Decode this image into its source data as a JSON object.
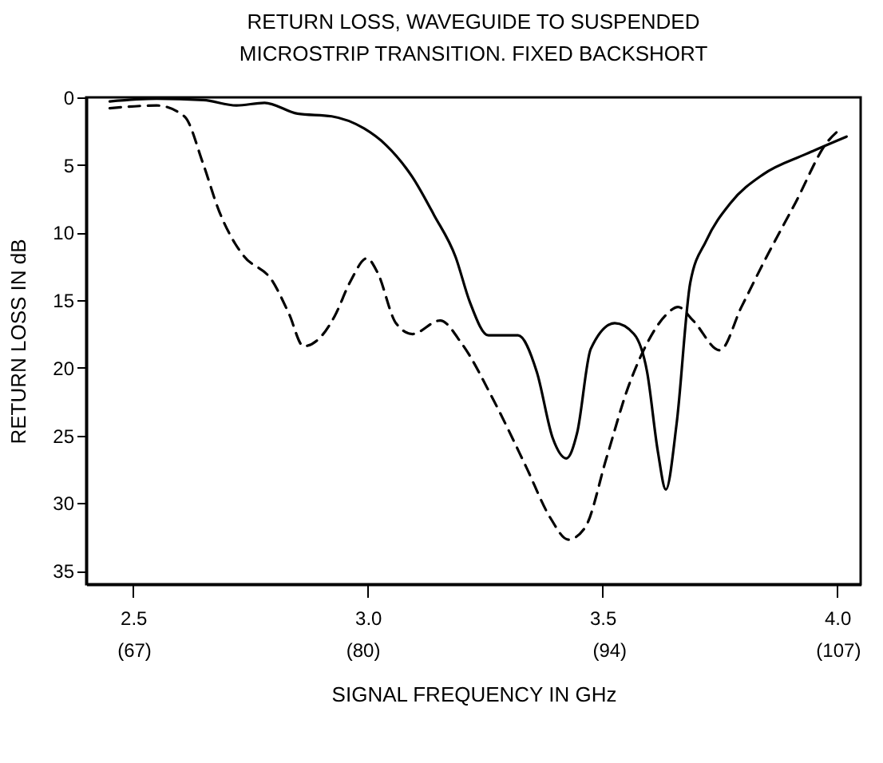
{
  "chart_data": {
    "type": "line",
    "title": [
      "RETURN LOSS, WAVEGUIDE TO SUSPENDED",
      "MICROSTRIP TRANSITION. FIXED BACKSHORT"
    ],
    "xlabel": "SIGNAL FREQUENCY IN GHz",
    "ylabel": "RETURN LOSS IN dB",
    "xlim": [
      2.4,
      4.05
    ],
    "xticks": [
      2.5,
      {
        "value": 3,
        "label": "3.0"
      },
      3.5,
      {
        "value": 4,
        "label": "4.0"
      }
    ],
    "x2lim": [
      64.3,
      108.3
    ],
    "x2ticks": [
      {
        "value": 67,
        "label": "(67)"
      },
      {
        "value": 80,
        "label": "(80)"
      },
      {
        "value": 94,
        "label": "(94)"
      },
      {
        "value": 107,
        "label": "(107)"
      }
    ],
    "ylim": [
      36,
      0
    ],
    "yticks": [
      0,
      5,
      10,
      15,
      20,
      25,
      30,
      35
    ],
    "grid": false,
    "series": [
      {
        "color": "#000000",
        "line_style": "solid",
        "x": [
          2.45,
          2.55,
          2.65,
          2.72,
          2.78,
          2.85,
          2.923,
          2.992,
          3.038,
          3.095,
          3.141,
          3.187,
          3.217,
          3.257,
          3.32,
          3.36,
          3.394,
          3.423,
          3.446,
          3.475,
          3.526,
          3.567,
          3.595,
          3.618,
          3.635,
          3.658,
          3.687,
          3.721,
          3.773,
          3.842,
          3.933,
          4.02
        ],
        "values": [
          0.3,
          0.1,
          0.2,
          0.6,
          0.4,
          1.2,
          1.4,
          2.3,
          3.5,
          5.9,
          8.7,
          11.8,
          15.1,
          17.6,
          17.6,
          20.3,
          25.2,
          26.7,
          24.8,
          18.6,
          16.7,
          17.5,
          20.3,
          26.2,
          29.0,
          24.1,
          13.7,
          10.6,
          7.8,
          5.7,
          4.2,
          2.9
        ]
      },
      {
        "color": "#000000",
        "line_style": "dashed",
        "x": [
          2.45,
          2.55,
          2.609,
          2.649,
          2.683,
          2.717,
          2.735,
          2.797,
          2.832,
          2.863,
          2.9,
          2.929,
          2.963,
          2.998,
          3.02,
          3.06,
          3.095,
          3.154,
          3.2,
          3.268,
          3.337,
          3.389,
          3.427,
          3.463,
          3.509,
          3.555,
          3.589,
          3.635,
          3.661,
          3.693,
          3.75,
          3.796,
          3.842,
          3.911,
          3.979,
          4.008
        ],
        "values": [
          0.8,
          0.6,
          1.4,
          4.9,
          8.4,
          10.8,
          11.7,
          13.6,
          16.0,
          18.4,
          17.7,
          16.2,
          13.6,
          11.9,
          12.9,
          16.7,
          17.5,
          16.5,
          18.2,
          22.4,
          27.3,
          31.1,
          32.7,
          31.8,
          26.6,
          21.4,
          18.6,
          16.1,
          15.5,
          16.5,
          18.7,
          15.5,
          12.3,
          7.8,
          3.3,
          2.3
        ]
      }
    ]
  }
}
